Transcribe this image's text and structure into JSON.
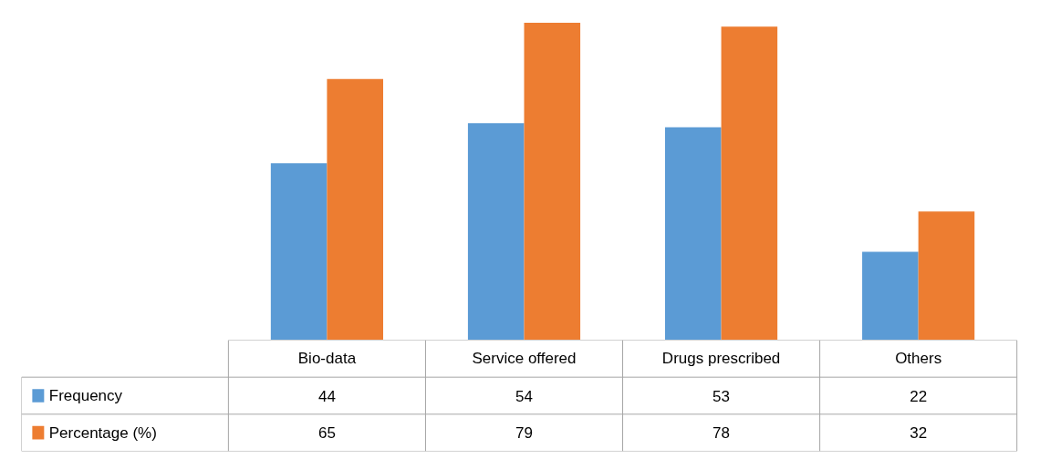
{
  "chart_data": {
    "type": "bar",
    "categories": [
      "Bio-data",
      "Service offered",
      "Drugs prescribed",
      "Others"
    ],
    "series": [
      {
        "name": "Frequency",
        "color": "#5b9bd5",
        "values": [
          44,
          54,
          53,
          22
        ]
      },
      {
        "name": "Percentage (%)",
        "color": "#ed7d31",
        "values": [
          65,
          79,
          78,
          32
        ]
      }
    ],
    "data_labels": true,
    "legend": "bottom",
    "grid": false
  }
}
